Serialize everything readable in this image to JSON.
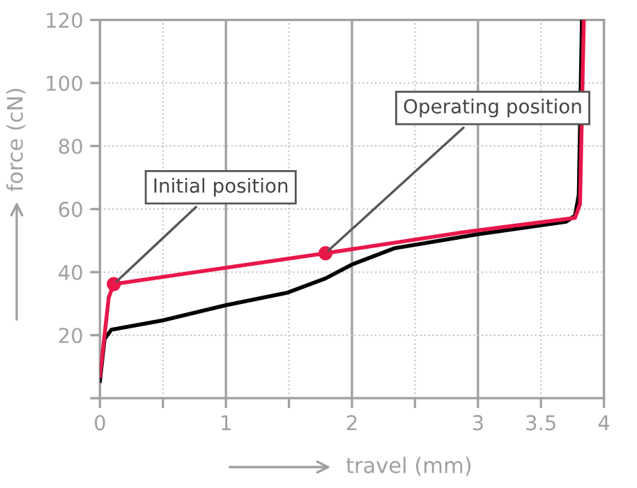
{
  "chart_data": {
    "type": "line",
    "xlabel": "travel (mm)",
    "ylabel": "force (cN)",
    "xlim": [
      0,
      4
    ],
    "ylim": [
      0,
      120
    ],
    "xticks": [
      0,
      {
        "value": 0.5,
        "label": null
      },
      1,
      {
        "value": 1.5,
        "label": null
      },
      2,
      {
        "value": 2.5,
        "label": null
      },
      3,
      3.5,
      4
    ],
    "yticks": [
      {
        "value": 0,
        "label": null
      },
      20,
      40,
      60,
      80,
      100,
      120
    ],
    "grid": true,
    "line_style": "solid",
    "marker": "none",
    "series": [
      {
        "color": "#000000",
        "x": [
          0,
          0.037,
          0.09,
          0.5,
          1.0,
          1.49,
          1.79,
          2.0,
          2.34,
          3.0,
          3.7,
          3.77,
          3.8,
          3.825
        ],
        "values": [
          5.5,
          18.8,
          21.7,
          24.7,
          29.5,
          33.5,
          38,
          42.4,
          47.6,
          52,
          56,
          57.9,
          64.5,
          120
        ]
      },
      {
        "color": "#e8174a",
        "x": [
          0,
          0.07,
          0.11,
          1.79,
          2.89,
          3.77,
          3.81,
          3.84
        ],
        "values": [
          7,
          32,
          36.2,
          46,
          52.7,
          57.2,
          61.6,
          120
        ]
      },
      {
        "type": "scatter",
        "marker": "circle",
        "color": "#e8174a",
        "x": [
          0.11,
          1.79
        ],
        "values": [
          36.2,
          46
        ]
      }
    ],
    "annotations": [
      {
        "text": "Initial position",
        "x": 0.11,
        "y": 36.2
      },
      {
        "text": "Operating position",
        "x": 1.79,
        "y": 46
      }
    ]
  }
}
